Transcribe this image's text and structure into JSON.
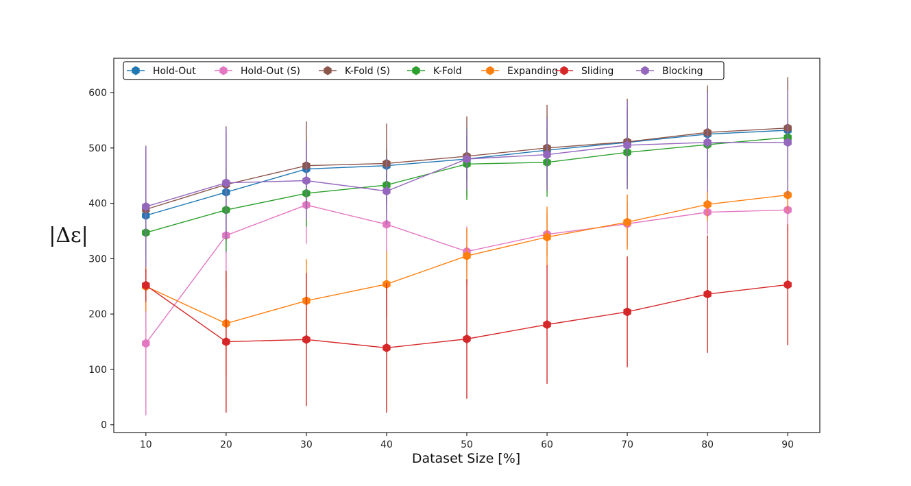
{
  "chart_data": {
    "type": "line",
    "title": "",
    "xlabel": "Dataset Size [%]",
    "ylabel": "|Δε|",
    "x": [
      10,
      20,
      30,
      40,
      50,
      60,
      70,
      80,
      90
    ],
    "xlim": [
      6,
      94
    ],
    "ylim": [
      -14,
      662
    ],
    "xticks": [
      10,
      20,
      30,
      40,
      50,
      60,
      70,
      80,
      90
    ],
    "yticks": [
      0,
      100,
      200,
      300,
      400,
      500,
      600
    ],
    "grid": false,
    "legend_position": "top",
    "series": [
      {
        "name": "Hold-Out",
        "color": "#1f77b4",
        "values": [
          378,
          420,
          462,
          468,
          480,
          496,
          510,
          525,
          532
        ],
        "errors": [
          120,
          110,
          50,
          30,
          40,
          60,
          60,
          80,
          90
        ]
      },
      {
        "name": "Hold-Out (S)",
        "color": "#e377c2",
        "values": [
          147,
          342,
          397,
          362,
          313,
          344,
          363,
          384,
          388
        ],
        "errors": [
          130,
          100,
          70,
          50,
          45,
          40,
          40,
          40,
          40
        ]
      },
      {
        "name": "K-Fold (S)",
        "color": "#8c564b",
        "values": [
          389,
          434,
          468,
          472,
          485,
          500,
          511,
          528,
          536
        ],
        "errors": [
          115,
          105,
          80,
          72,
          72,
          78,
          78,
          85,
          92
        ]
      },
      {
        "name": "K-Fold",
        "color": "#2ca02c",
        "values": [
          347,
          388,
          418,
          433,
          471,
          474,
          492,
          506,
          519
        ],
        "errors": [
          60,
          75,
          60,
          50,
          65,
          62,
          66,
          75,
          80
        ]
      },
      {
        "name": "Expanding",
        "color": "#ff7f0e",
        "values": [
          250,
          183,
          224,
          254,
          305,
          339,
          366,
          398,
          415
        ],
        "errors": [
          45,
          95,
          75,
          60,
          50,
          55,
          50,
          30,
          30
        ]
      },
      {
        "name": "Sliding",
        "color": "#d62728",
        "values": [
          252,
          150,
          154,
          139,
          155,
          181,
          204,
          236,
          253
        ],
        "errors": [
          30,
          128,
          120,
          117,
          108,
          107,
          100,
          106,
          109
        ]
      },
      {
        "name": "Blocking",
        "color": "#9467bd",
        "values": [
          394,
          437,
          441,
          422,
          480,
          488,
          505,
          510,
          510
        ],
        "errors": [
          110,
          100,
          70,
          60,
          55,
          65,
          80,
          90,
          95
        ]
      }
    ]
  }
}
